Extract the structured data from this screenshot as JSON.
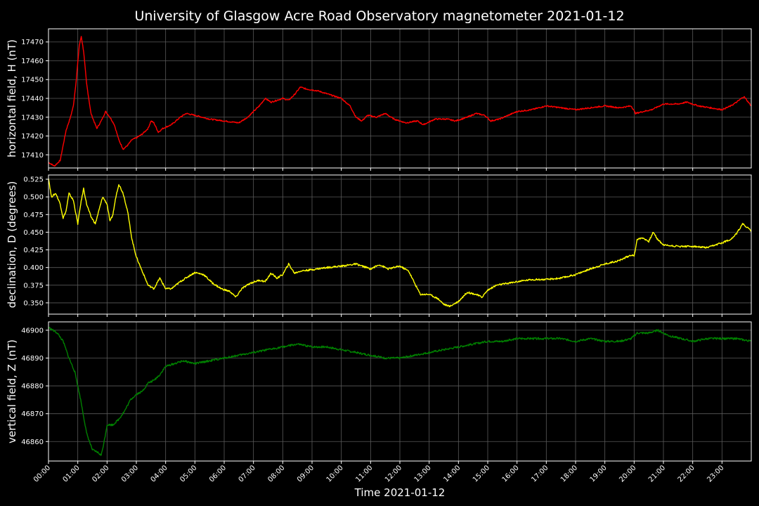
{
  "chart_data": {
    "type": "line",
    "title": "University of Glasgow Acre Road Observatory magnetometer 2021-01-12",
    "xlabel": "Time 2021-01-12",
    "x_tick_labels": [
      "00:00",
      "01:00",
      "02:00",
      "03:00",
      "04:00",
      "05:00",
      "06:00",
      "07:00",
      "08:00",
      "09:00",
      "10:00",
      "11:00",
      "12:00",
      "13:00",
      "14:00",
      "15:00",
      "16:00",
      "17:00",
      "18:00",
      "19:00",
      "20:00",
      "21:00",
      "22:00",
      "23:00"
    ],
    "xlim": [
      0,
      24
    ],
    "grid": true,
    "panels": [
      {
        "ylabel": "horizontal field, H (nT)",
        "color": "#ff0000",
        "ylim": [
          17403,
          17477
        ],
        "yticks": [
          17410,
          17420,
          17430,
          17440,
          17450,
          17460,
          17470
        ],
        "ytick_labels": [
          "17410",
          "17420",
          "17430",
          "17440",
          "17450",
          "17460",
          "17470"
        ],
        "points": [
          [
            0,
            17406
          ],
          [
            0.2,
            17404
          ],
          [
            0.4,
            17407
          ],
          [
            0.5,
            17415
          ],
          [
            0.6,
            17423
          ],
          [
            0.75,
            17430
          ],
          [
            0.85,
            17436
          ],
          [
            0.95,
            17450
          ],
          [
            1.05,
            17468
          ],
          [
            1.12,
            17473
          ],
          [
            1.2,
            17465
          ],
          [
            1.3,
            17448
          ],
          [
            1.45,
            17432
          ],
          [
            1.65,
            17424
          ],
          [
            1.8,
            17428
          ],
          [
            1.95,
            17433
          ],
          [
            2.1,
            17430
          ],
          [
            2.25,
            17426
          ],
          [
            2.4,
            17418
          ],
          [
            2.55,
            17413
          ],
          [
            2.7,
            17415
          ],
          [
            2.85,
            17418
          ],
          [
            3.0,
            17419
          ],
          [
            3.2,
            17421
          ],
          [
            3.4,
            17424
          ],
          [
            3.5,
            17428
          ],
          [
            3.6,
            17427
          ],
          [
            3.75,
            17422
          ],
          [
            3.9,
            17424
          ],
          [
            4.2,
            17426
          ],
          [
            4.5,
            17430
          ],
          [
            4.7,
            17432
          ],
          [
            5.0,
            17431
          ],
          [
            5.5,
            17429
          ],
          [
            6.0,
            17428
          ],
          [
            6.5,
            17427
          ],
          [
            6.8,
            17430
          ],
          [
            7.0,
            17433
          ],
          [
            7.2,
            17436
          ],
          [
            7.4,
            17440
          ],
          [
            7.6,
            17438
          ],
          [
            8.0,
            17440
          ],
          [
            8.2,
            17439
          ],
          [
            8.4,
            17442
          ],
          [
            8.6,
            17446
          ],
          [
            8.8,
            17445
          ],
          [
            9.2,
            17444
          ],
          [
            9.6,
            17442
          ],
          [
            10.0,
            17440
          ],
          [
            10.3,
            17436
          ],
          [
            10.5,
            17430
          ],
          [
            10.7,
            17428
          ],
          [
            10.9,
            17431
          ],
          [
            11.2,
            17430
          ],
          [
            11.5,
            17432
          ],
          [
            11.8,
            17429
          ],
          [
            12.2,
            17427
          ],
          [
            12.6,
            17428
          ],
          [
            12.8,
            17426
          ],
          [
            13.2,
            17429
          ],
          [
            13.6,
            17429
          ],
          [
            13.9,
            17428
          ],
          [
            14.3,
            17430
          ],
          [
            14.6,
            17432
          ],
          [
            14.9,
            17431
          ],
          [
            15.1,
            17428
          ],
          [
            15.4,
            17429
          ],
          [
            15.7,
            17431
          ],
          [
            16.0,
            17433
          ],
          [
            16.5,
            17434
          ],
          [
            17.0,
            17436
          ],
          [
            17.5,
            17435
          ],
          [
            18.0,
            17434
          ],
          [
            18.5,
            17435
          ],
          [
            19.0,
            17436
          ],
          [
            19.5,
            17435
          ],
          [
            19.9,
            17436
          ],
          [
            20.05,
            17432
          ],
          [
            20.3,
            17433
          ],
          [
            20.6,
            17434
          ],
          [
            21.0,
            17437
          ],
          [
            21.5,
            17437
          ],
          [
            21.8,
            17438
          ],
          [
            22.2,
            17436
          ],
          [
            22.6,
            17435
          ],
          [
            23.0,
            17434
          ],
          [
            23.3,
            17436
          ],
          [
            23.5,
            17438
          ],
          [
            23.75,
            17441
          ],
          [
            24.0,
            17436
          ]
        ]
      },
      {
        "ylabel": "declination, D (degrees)",
        "color": "#ffff00",
        "ylim": [
          0.334,
          0.531
        ],
        "yticks": [
          0.35,
          0.375,
          0.4,
          0.425,
          0.45,
          0.475,
          0.5,
          0.525
        ],
        "ytick_labels": [
          "0.350",
          "0.375",
          "0.400",
          "0.425",
          "0.450",
          "0.475",
          "0.500",
          "0.525"
        ],
        "points": [
          [
            0,
            0.527
          ],
          [
            0.1,
            0.5
          ],
          [
            0.25,
            0.505
          ],
          [
            0.4,
            0.49
          ],
          [
            0.5,
            0.47
          ],
          [
            0.6,
            0.48
          ],
          [
            0.7,
            0.505
          ],
          [
            0.85,
            0.495
          ],
          [
            1.0,
            0.462
          ],
          [
            1.1,
            0.49
          ],
          [
            1.2,
            0.512
          ],
          [
            1.3,
            0.49
          ],
          [
            1.45,
            0.472
          ],
          [
            1.6,
            0.462
          ],
          [
            1.75,
            0.485
          ],
          [
            1.85,
            0.5
          ],
          [
            2.0,
            0.49
          ],
          [
            2.1,
            0.465
          ],
          [
            2.2,
            0.475
          ],
          [
            2.3,
            0.5
          ],
          [
            2.4,
            0.518
          ],
          [
            2.55,
            0.505
          ],
          [
            2.7,
            0.48
          ],
          [
            2.85,
            0.44
          ],
          [
            3.0,
            0.415
          ],
          [
            3.2,
            0.395
          ],
          [
            3.4,
            0.375
          ],
          [
            3.6,
            0.37
          ],
          [
            3.8,
            0.385
          ],
          [
            4.0,
            0.37
          ],
          [
            4.2,
            0.37
          ],
          [
            4.5,
            0.38
          ],
          [
            4.8,
            0.388
          ],
          [
            5.0,
            0.393
          ],
          [
            5.3,
            0.39
          ],
          [
            5.6,
            0.378
          ],
          [
            5.9,
            0.37
          ],
          [
            6.2,
            0.366
          ],
          [
            6.4,
            0.358
          ],
          [
            6.6,
            0.37
          ],
          [
            6.9,
            0.378
          ],
          [
            7.2,
            0.382
          ],
          [
            7.4,
            0.38
          ],
          [
            7.6,
            0.392
          ],
          [
            7.8,
            0.385
          ],
          [
            8.0,
            0.39
          ],
          [
            8.2,
            0.405
          ],
          [
            8.4,
            0.392
          ],
          [
            8.6,
            0.395
          ],
          [
            9.0,
            0.397
          ],
          [
            9.5,
            0.4
          ],
          [
            10.0,
            0.402
          ],
          [
            10.5,
            0.405
          ],
          [
            11.0,
            0.398
          ],
          [
            11.3,
            0.404
          ],
          [
            11.6,
            0.398
          ],
          [
            12.0,
            0.402
          ],
          [
            12.3,
            0.395
          ],
          [
            12.5,
            0.378
          ],
          [
            12.7,
            0.362
          ],
          [
            13.0,
            0.362
          ],
          [
            13.3,
            0.356
          ],
          [
            13.5,
            0.348
          ],
          [
            13.7,
            0.345
          ],
          [
            14.0,
            0.352
          ],
          [
            14.3,
            0.365
          ],
          [
            14.6,
            0.362
          ],
          [
            14.8,
            0.358
          ],
          [
            15.0,
            0.368
          ],
          [
            15.3,
            0.375
          ],
          [
            15.6,
            0.377
          ],
          [
            16.0,
            0.38
          ],
          [
            16.5,
            0.383
          ],
          [
            17.0,
            0.383
          ],
          [
            17.5,
            0.385
          ],
          [
            18.0,
            0.39
          ],
          [
            18.5,
            0.398
          ],
          [
            19.0,
            0.405
          ],
          [
            19.5,
            0.41
          ],
          [
            19.9,
            0.418
          ],
          [
            20.0,
            0.416
          ],
          [
            20.1,
            0.44
          ],
          [
            20.3,
            0.442
          ],
          [
            20.5,
            0.437
          ],
          [
            20.65,
            0.45
          ],
          [
            20.8,
            0.44
          ],
          [
            21.0,
            0.432
          ],
          [
            21.5,
            0.43
          ],
          [
            22.0,
            0.43
          ],
          [
            22.5,
            0.428
          ],
          [
            23.0,
            0.435
          ],
          [
            23.3,
            0.44
          ],
          [
            23.5,
            0.448
          ],
          [
            23.7,
            0.462
          ],
          [
            24.0,
            0.452
          ]
        ]
      },
      {
        "ylabel": "vertical field, Z (nT)",
        "color": "#008000",
        "ylim": [
          46853,
          46903
        ],
        "yticks": [
          46860,
          46870,
          46880,
          46890,
          46900
        ],
        "ytick_labels": [
          "46860",
          "46870",
          "46880",
          "46890",
          "46900"
        ],
        "points": [
          [
            0,
            46901
          ],
          [
            0.3,
            46899
          ],
          [
            0.5,
            46896
          ],
          [
            0.7,
            46890
          ],
          [
            0.9,
            46885
          ],
          [
            1.1,
            46875
          ],
          [
            1.3,
            46863
          ],
          [
            1.5,
            46857
          ],
          [
            1.7,
            46856
          ],
          [
            1.8,
            46855
          ],
          [
            1.9,
            46860
          ],
          [
            2.0,
            46866
          ],
          [
            2.2,
            46866
          ],
          [
            2.4,
            46868
          ],
          [
            2.6,
            46871
          ],
          [
            2.8,
            46875
          ],
          [
            3.0,
            46877
          ],
          [
            3.2,
            46878
          ],
          [
            3.4,
            46881
          ],
          [
            3.6,
            46882
          ],
          [
            3.8,
            46884
          ],
          [
            4.0,
            46887
          ],
          [
            4.3,
            46888
          ],
          [
            4.6,
            46889
          ],
          [
            5.0,
            46888
          ],
          [
            5.5,
            46889
          ],
          [
            6.0,
            46890
          ],
          [
            6.5,
            46891
          ],
          [
            7.0,
            46892
          ],
          [
            7.5,
            46893
          ],
          [
            8.0,
            46894
          ],
          [
            8.5,
            46895
          ],
          [
            9.0,
            46894
          ],
          [
            9.5,
            46894
          ],
          [
            10.0,
            46893
          ],
          [
            10.5,
            46892
          ],
          [
            11.0,
            46891
          ],
          [
            11.5,
            46890
          ],
          [
            12.0,
            46890
          ],
          [
            12.5,
            46891
          ],
          [
            13.0,
            46892
          ],
          [
            13.5,
            46893
          ],
          [
            14.0,
            46894
          ],
          [
            14.5,
            46895
          ],
          [
            15.0,
            46896
          ],
          [
            15.5,
            46896
          ],
          [
            16.0,
            46897
          ],
          [
            16.5,
            46897
          ],
          [
            17.0,
            46897
          ],
          [
            17.5,
            46897
          ],
          [
            18.0,
            46896
          ],
          [
            18.5,
            46897
          ],
          [
            19.0,
            46896
          ],
          [
            19.5,
            46896
          ],
          [
            19.9,
            46897
          ],
          [
            20.1,
            46899
          ],
          [
            20.5,
            46899
          ],
          [
            20.8,
            46900
          ],
          [
            21.2,
            46898
          ],
          [
            21.6,
            46897
          ],
          [
            22.0,
            46896
          ],
          [
            22.5,
            46897
          ],
          [
            23.0,
            46897
          ],
          [
            23.5,
            46897
          ],
          [
            24.0,
            46896
          ]
        ]
      }
    ]
  }
}
